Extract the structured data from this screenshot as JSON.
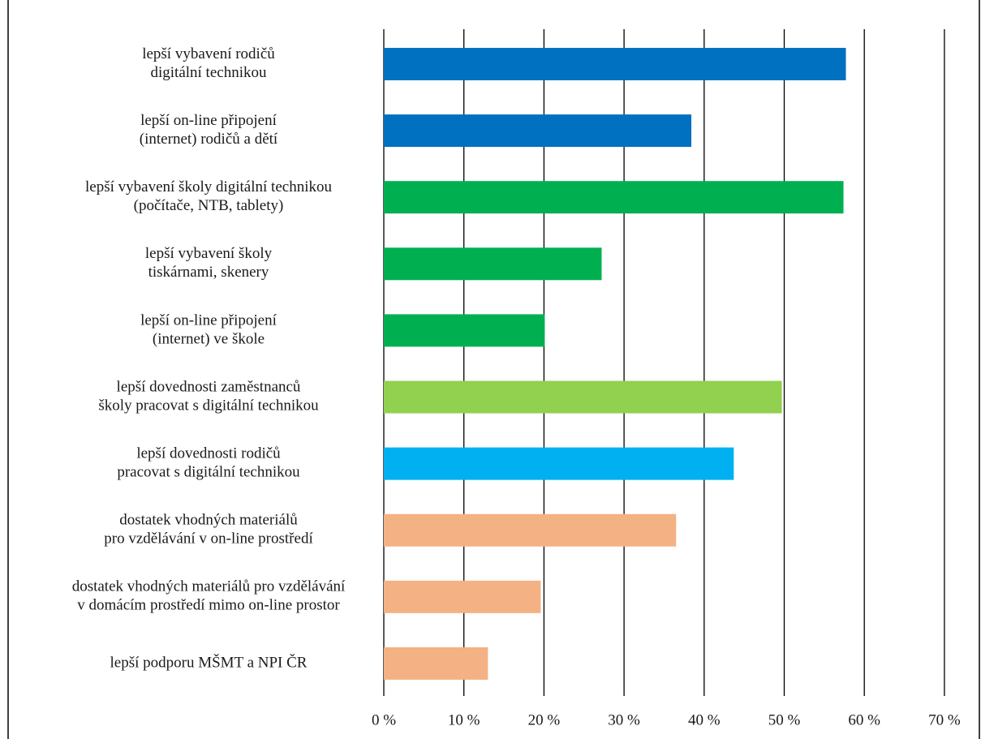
{
  "chart_data": {
    "type": "bar",
    "orientation": "horizontal",
    "categories": [
      [
        "lepší vybavení rodičů",
        "digitální technikou"
      ],
      [
        "lepší on-line připojení",
        "(internet) rodičů a dětí"
      ],
      [
        "lepší vybavení školy digitální technikou",
        "(počítače, NTB, tablety)"
      ],
      [
        "lepší vybavení školy",
        "tiskárnami, skenery"
      ],
      [
        "lepší on-line připojení",
        "(internet) ve škole"
      ],
      [
        "lepší dovednosti zaměstnanců",
        "školy pracovat s digitální technikou"
      ],
      [
        "lepší dovednosti rodičů",
        "pracovat s digitální technikou"
      ],
      [
        "dostatek vhodných materiálů",
        "pro vzdělávání v on-line prostředí"
      ],
      [
        "dostatek vhodných materiálů pro vzdělávání",
        "v domácím prostředí mimo on-line prostor"
      ],
      [
        "lepší podporu MŠMT a NPI ČR"
      ]
    ],
    "values": [
      57.7,
      38.4,
      57.4,
      27.2,
      20.1,
      49.7,
      43.7,
      36.5,
      19.6,
      13.0
    ],
    "colors": [
      "#0070C0",
      "#0070C0",
      "#00B050",
      "#00B050",
      "#00B050",
      "#92D050",
      "#00B0F0",
      "#F4B183",
      "#F4B183",
      "#F4B183"
    ],
    "x_ticks": [
      "0 %",
      "10 %",
      "20 %",
      "30 %",
      "40 %",
      "50 %",
      "60 %",
      "70 %"
    ],
    "xlim": [
      0,
      70
    ],
    "grid": "vertical gridlines",
    "title": "",
    "xlabel": "",
    "ylabel": ""
  }
}
